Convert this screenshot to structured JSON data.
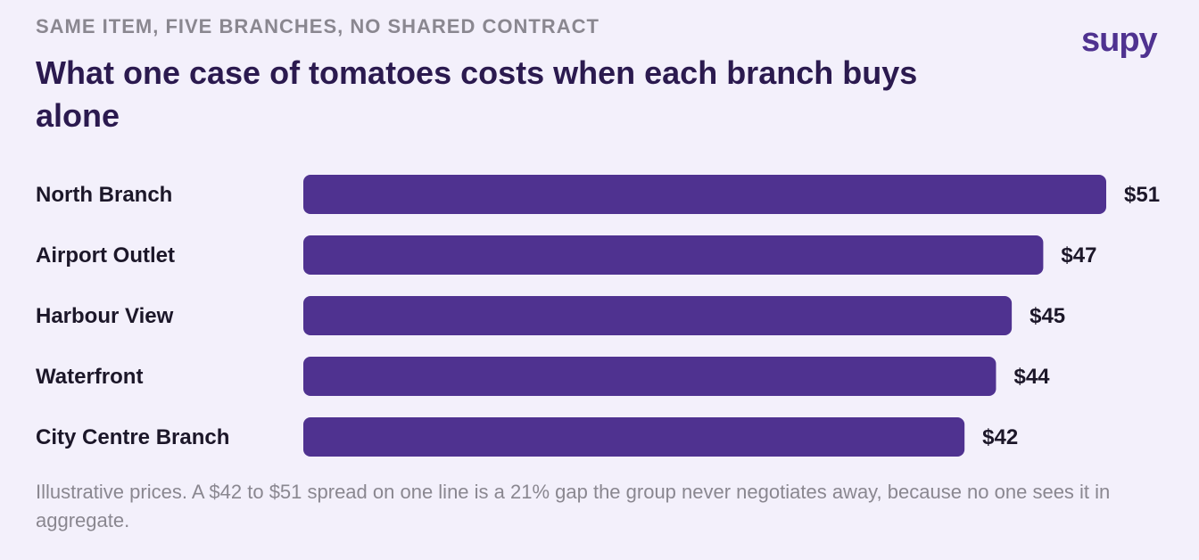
{
  "header": {
    "eyebrow": "SAME ITEM, FIVE BRANCHES, NO SHARED CONTRACT",
    "title": "What one case of tomatoes costs when each branch buys alone",
    "logo": "supy"
  },
  "colors": {
    "bar": "#4f3290",
    "background": "#f3f0fb",
    "title": "#2b1a4f",
    "muted": "#8a8790"
  },
  "chart_data": {
    "type": "bar",
    "orientation": "horizontal",
    "title": "What one case of tomatoes costs when each branch buys alone",
    "categories": [
      "North Branch",
      "Airport Outlet",
      "Harbour View",
      "Waterfront",
      "City Centre Branch"
    ],
    "values": [
      51,
      47,
      45,
      44,
      42
    ],
    "value_labels": [
      "$51",
      "$47",
      "$45",
      "$44",
      "$42"
    ],
    "xlabel": "",
    "ylabel": "",
    "grid": false,
    "legend": "none"
  },
  "footer": {
    "note": "Illustrative prices. A $42 to $51 spread on one line is a 21% gap the group never negotiates away, because no one sees it in aggregate."
  }
}
